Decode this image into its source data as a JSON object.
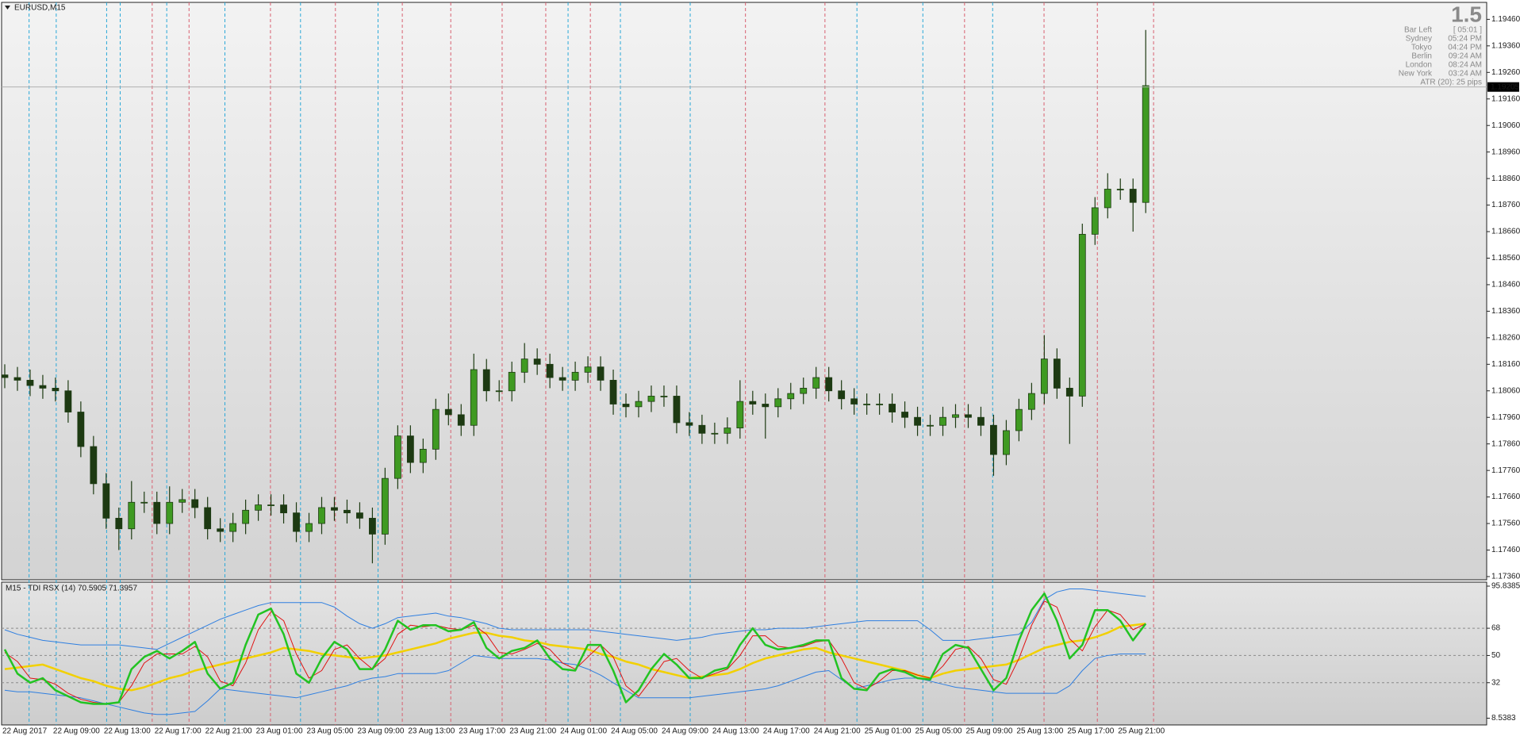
{
  "chart_data": [
    {
      "type": "candlestick",
      "title": "EURUSD,M15",
      "categories": [
        "22 Aug 2017",
        null,
        null,
        null,
        "22 Aug 09:00",
        null,
        null,
        null,
        "22 Aug 13:00",
        null,
        null,
        null,
        "22 Aug 17:00",
        null,
        null,
        null,
        "22 Aug 21:00",
        null,
        null,
        null,
        "23 Aug 01:00",
        null,
        null,
        null,
        "23 Aug 05:00",
        null,
        null,
        null,
        "23 Aug 09:00",
        null,
        null,
        null,
        "23 Aug 13:00",
        null,
        null,
        null,
        "23 Aug 17:00",
        null,
        null,
        null,
        "23 Aug 21:00",
        null,
        null,
        null,
        "24 Aug 01:00",
        null,
        null,
        null,
        "24 Aug 05:00",
        null,
        null,
        null,
        "24 Aug 09:00",
        null,
        null,
        null,
        "24 Aug 13:00",
        null,
        null,
        null,
        "24 Aug 17:00",
        null,
        null,
        null,
        "24 Aug 21:00",
        null,
        null,
        null,
        "25 Aug 01:00",
        null,
        null,
        null,
        "25 Aug 05:00",
        null,
        null,
        null,
        "25 Aug 09:00",
        null,
        null,
        null,
        "25 Aug 13:00",
        null,
        null,
        null,
        "25 Aug 17:00",
        null,
        null,
        null,
        "25 Aug 21:00",
        null,
        null
      ],
      "open": [
        1.1812,
        1.1811,
        1.181,
        1.1808,
        1.1807,
        1.1806,
        1.1798,
        1.1785,
        1.1771,
        1.1758,
        1.1754,
        1.1764,
        1.1764,
        1.1756,
        1.1764,
        1.1765,
        1.1762,
        1.1754,
        1.1753,
        1.1756,
        1.1761,
        1.1763,
        1.1763,
        1.176,
        1.1753,
        1.1756,
        1.1762,
        1.1761,
        1.176,
        1.1758,
        1.1752,
        1.1773,
        1.1789,
        1.1779,
        1.1784,
        1.1799,
        1.1797,
        1.1793,
        1.1814,
        1.1806,
        1.1806,
        1.1813,
        1.1818,
        1.1816,
        1.1811,
        1.181,
        1.1813,
        1.1815,
        1.181,
        1.1801,
        1.18,
        1.1802,
        1.1804,
        1.1804,
        1.1794,
        1.1793,
        1.179,
        1.179,
        1.1792,
        1.1802,
        1.1801,
        1.18,
        1.1803,
        1.1805,
        1.1807,
        1.1811,
        1.1806,
        1.1803,
        1.1801,
        1.1801,
        1.1801,
        1.1798,
        1.1796,
        1.1793,
        1.1793,
        1.1796,
        1.1797,
        1.1796,
        1.1793,
        1.1782,
        1.1791,
        1.1799,
        1.1805,
        1.1818,
        1.1807,
        1.1804,
        1.1865,
        1.1875,
        1.1882,
        1.1882,
        1.1877
      ],
      "high": [
        1.1816,
        1.1815,
        1.1814,
        1.1812,
        1.1811,
        1.181,
        1.1802,
        1.1789,
        1.1775,
        1.1762,
        1.1772,
        1.1768,
        1.1768,
        1.177,
        1.1769,
        1.1769,
        1.1766,
        1.1758,
        1.176,
        1.1765,
        1.1767,
        1.1767,
        1.1767,
        1.1764,
        1.176,
        1.1766,
        1.1766,
        1.1765,
        1.1764,
        1.1762,
        1.1777,
        1.1793,
        1.1793,
        1.1788,
        1.1803,
        1.1805,
        1.1801,
        1.182,
        1.1818,
        1.181,
        1.1817,
        1.1824,
        1.1822,
        1.182,
        1.1815,
        1.1817,
        1.1819,
        1.1819,
        1.1814,
        1.1805,
        1.1806,
        1.1808,
        1.1808,
        1.1808,
        1.1798,
        1.1797,
        1.1794,
        1.1796,
        1.181,
        1.1806,
        1.1805,
        1.1807,
        1.1809,
        1.1811,
        1.1815,
        1.1815,
        1.181,
        1.1807,
        1.1805,
        1.1805,
        1.1805,
        1.1802,
        1.18,
        1.1797,
        1.18,
        1.1801,
        1.1801,
        1.18,
        1.1797,
        1.1795,
        1.1803,
        1.1809,
        1.1827,
        1.1822,
        1.1811,
        1.1869,
        1.1879,
        1.1888,
        1.1886,
        1.1886,
        1.1942
      ],
      "low": [
        1.1807,
        1.1806,
        1.1804,
        1.1803,
        1.1802,
        1.1794,
        1.1781,
        1.1767,
        1.1754,
        1.1746,
        1.175,
        1.176,
        1.1752,
        1.1752,
        1.176,
        1.1758,
        1.175,
        1.1749,
        1.1749,
        1.1752,
        1.1757,
        1.1759,
        1.1756,
        1.1749,
        1.1749,
        1.1752,
        1.1757,
        1.1756,
        1.1754,
        1.1741,
        1.1748,
        1.1769,
        1.1775,
        1.1775,
        1.178,
        1.1793,
        1.1789,
        1.1789,
        1.1802,
        1.1802,
        1.1802,
        1.1809,
        1.1812,
        1.1807,
        1.1806,
        1.1806,
        1.1809,
        1.1806,
        1.1797,
        1.1796,
        1.1796,
        1.1798,
        1.18,
        1.179,
        1.1789,
        1.1786,
        1.1786,
        1.1786,
        1.1788,
        1.1797,
        1.1788,
        1.1796,
        1.1799,
        1.1801,
        1.1803,
        1.1802,
        1.1799,
        1.1797,
        1.1797,
        1.1797,
        1.1794,
        1.1792,
        1.1789,
        1.1789,
        1.1789,
        1.1792,
        1.1792,
        1.1789,
        1.1774,
        1.1778,
        1.1787,
        1.1795,
        1.1801,
        1.1803,
        1.1786,
        1.18,
        1.1861,
        1.1871,
        1.1878,
        1.1866,
        1.1873
      ],
      "close": [
        1.1811,
        1.181,
        1.1808,
        1.1807,
        1.1806,
        1.1798,
        1.1785,
        1.1771,
        1.1758,
        1.1754,
        1.1764,
        1.1764,
        1.1756,
        1.1764,
        1.1765,
        1.1762,
        1.1754,
        1.1753,
        1.1756,
        1.1761,
        1.1763,
        1.1763,
        1.176,
        1.1753,
        1.1756,
        1.1762,
        1.1761,
        1.176,
        1.1758,
        1.1752,
        1.1773,
        1.1789,
        1.1779,
        1.1784,
        1.1799,
        1.1797,
        1.1793,
        1.1814,
        1.1806,
        1.1806,
        1.1813,
        1.1818,
        1.1816,
        1.1811,
        1.181,
        1.1813,
        1.1815,
        1.181,
        1.1801,
        1.18,
        1.1802,
        1.1804,
        1.1804,
        1.1794,
        1.1793,
        1.179,
        1.179,
        1.1792,
        1.1802,
        1.1801,
        1.18,
        1.1803,
        1.1805,
        1.1807,
        1.1811,
        1.1806,
        1.1803,
        1.1801,
        1.1801,
        1.1801,
        1.1798,
        1.1796,
        1.1793,
        1.1793,
        1.1796,
        1.1797,
        1.1796,
        1.1793,
        1.1782,
        1.1791,
        1.1799,
        1.1805,
        1.1818,
        1.1807,
        1.1804,
        1.1865,
        1.1875,
        1.1882,
        1.1882,
        1.1877,
        1.1921
      ],
      "up_color": "#3f9a22",
      "down_color": "#1d3a12",
      "wick_color": "#1d3a12",
      "bid": 1.19205,
      "ylim": [
        1.1735,
        1.1952
      ],
      "yticks": [
        {
          "value": 1.1946,
          "label": "1.19460"
        },
        {
          "value": 1.1936,
          "label": "1.19360"
        },
        {
          "value": 1.1926,
          "label": "1.19260"
        },
        {
          "value": 1.1916,
          "label": "1.19160"
        },
        {
          "value": 1.1906,
          "label": "1.19060"
        },
        {
          "value": 1.1896,
          "label": "1.18960"
        },
        {
          "value": 1.1886,
          "label": "1.18860"
        },
        {
          "value": 1.1876,
          "label": "1.18760"
        },
        {
          "value": 1.1866,
          "label": "1.18660"
        },
        {
          "value": 1.1856,
          "label": "1.18560"
        },
        {
          "value": 1.1846,
          "label": "1.18460"
        },
        {
          "value": 1.1836,
          "label": "1.18360"
        },
        {
          "value": 1.1826,
          "label": "1.18260"
        },
        {
          "value": 1.1816,
          "label": "1.18160"
        },
        {
          "value": 1.1806,
          "label": "1.18060"
        },
        {
          "value": 1.1796,
          "label": "1.17960"
        },
        {
          "value": 1.1786,
          "label": "1.17860"
        },
        {
          "value": 1.1776,
          "label": "1.17760"
        },
        {
          "value": 1.1766,
          "label": "1.17660"
        },
        {
          "value": 1.1756,
          "label": "1.17560"
        },
        {
          "value": 1.1746,
          "label": "1.17460"
        },
        {
          "value": 1.1736,
          "label": "1.17360"
        }
      ]
    },
    {
      "type": "line",
      "title": "M15 - TDI RSX (14) 70.5905 71.3957",
      "ylim": [
        8.5383,
        95.8385
      ],
      "yticks": [
        95.8385,
        68,
        50,
        32,
        8.5383
      ],
      "series": [
        {
          "color": "#2f7fe0",
          "width": 1,
          "values": [
            67,
            64,
            62,
            60,
            59,
            58,
            57,
            57,
            57,
            57,
            56,
            55,
            54,
            58,
            62,
            66,
            70,
            74,
            77,
            80,
            83,
            85,
            85,
            85,
            85,
            85,
            82,
            76,
            71,
            68,
            71,
            75,
            76,
            77,
            78,
            76,
            75,
            73,
            71,
            68,
            67,
            67,
            67,
            67,
            67,
            67,
            67,
            66,
            65,
            64,
            63,
            62,
            61,
            60,
            61,
            62,
            64,
            65,
            66,
            67,
            67,
            68,
            68,
            68,
            69,
            70,
            71,
            72,
            73,
            73,
            73,
            73,
            73,
            67,
            60,
            60,
            60,
            61,
            62,
            63,
            64,
            72,
            87,
            92,
            94,
            94,
            93,
            92,
            91,
            90,
            89
          ]
        },
        {
          "color": "#2f7fe0",
          "width": 1,
          "values": [
            27,
            26,
            26,
            25,
            24,
            23,
            22,
            20,
            18,
            16,
            14,
            12,
            11,
            11,
            12,
            13,
            20,
            28,
            27,
            26,
            25,
            24,
            23,
            22,
            24,
            26,
            28,
            30,
            33,
            35,
            36,
            38,
            38,
            38,
            38,
            40,
            45,
            50,
            49,
            48,
            48,
            48,
            48,
            47,
            45,
            44,
            41,
            37,
            32,
            27,
            22,
            22,
            22,
            22,
            22,
            23,
            24,
            25,
            26,
            27,
            28,
            30,
            33,
            36,
            39,
            40,
            34,
            28,
            30,
            32,
            34,
            35,
            35,
            33,
            31,
            29,
            28,
            27,
            26,
            25,
            25,
            25,
            25,
            25,
            30,
            40,
            48,
            50,
            51,
            51,
            51
          ]
        },
        {
          "color": "#f2d000",
          "width": 2.5,
          "values": [
            41,
            42,
            43,
            44,
            41,
            38,
            35,
            33,
            30,
            28,
            27,
            29,
            32,
            35,
            37,
            40,
            42,
            44,
            46,
            48,
            50,
            52,
            55,
            54,
            53,
            51,
            50,
            49,
            48,
            49,
            50,
            52,
            54,
            56,
            58,
            61,
            63,
            65,
            65,
            63,
            62,
            60,
            59,
            57,
            56,
            55,
            54,
            51,
            49,
            46,
            44,
            41,
            39,
            37,
            35,
            36,
            37,
            38,
            41,
            45,
            48,
            50,
            52,
            54,
            55,
            52,
            50,
            48,
            46,
            44,
            42,
            40,
            37,
            35,
            38,
            40,
            41,
            42,
            43,
            44,
            47,
            51,
            55,
            57,
            59,
            60,
            62,
            65,
            69,
            70,
            71
          ]
        },
        {
          "color": "#e01010",
          "width": 1,
          "values": [
            52,
            46,
            35,
            34,
            31,
            25,
            21,
            19,
            18,
            19,
            30,
            45,
            51,
            51,
            51,
            56,
            49,
            33,
            30,
            45,
            67,
            79,
            73,
            51,
            35,
            40,
            54,
            57,
            48,
            41,
            48,
            64,
            70,
            69,
            70,
            68,
            67,
            70,
            64,
            52,
            51,
            54,
            58,
            54,
            45,
            41,
            49,
            57,
            49,
            30,
            23,
            34,
            46,
            48,
            40,
            35,
            38,
            41,
            50,
            63,
            63,
            56,
            55,
            56,
            59,
            60,
            48,
            32,
            28,
            33,
            40,
            40,
            37,
            35,
            43,
            54,
            56,
            48,
            34,
            31,
            48,
            70,
            86,
            82,
            61,
            53,
            69,
            80,
            77,
            67,
            71
          ]
        },
        {
          "color": "#22c322",
          "width": 2.5,
          "values": [
            54,
            38,
            32,
            35,
            27,
            23,
            19,
            18,
            18,
            19,
            41,
            49,
            53,
            48,
            53,
            59,
            38,
            28,
            32,
            57,
            77,
            81,
            64,
            38,
            32,
            48,
            59,
            54,
            41,
            41,
            54,
            73,
            67,
            70,
            70,
            66,
            67,
            72,
            55,
            48,
            53,
            55,
            60,
            48,
            41,
            40,
            57,
            57,
            40,
            19,
            27,
            41,
            51,
            44,
            35,
            35,
            40,
            42,
            57,
            68,
            57,
            54,
            55,
            57,
            60,
            60,
            35,
            28,
            27,
            38,
            41,
            39,
            35,
            34,
            51,
            57,
            55,
            41,
            27,
            35,
            60,
            80,
            91,
            73,
            48,
            57,
            80,
            80,
            73,
            60,
            71
          ]
        }
      ]
    }
  ],
  "info_panel": {
    "value": 1.5,
    "rows": [
      [
        "Bar Left",
        "[ 05:01 ]"
      ],
      [
        "Sydney",
        "05:24 PM"
      ],
      [
        "Tokyo",
        "04:24 PM"
      ],
      [
        "Berlin",
        "09:24 AM"
      ],
      [
        "London",
        "08:24 AM"
      ],
      [
        "New York",
        "03:24 AM"
      ]
    ],
    "atr": "ATR (20): 25 pips"
  }
}
